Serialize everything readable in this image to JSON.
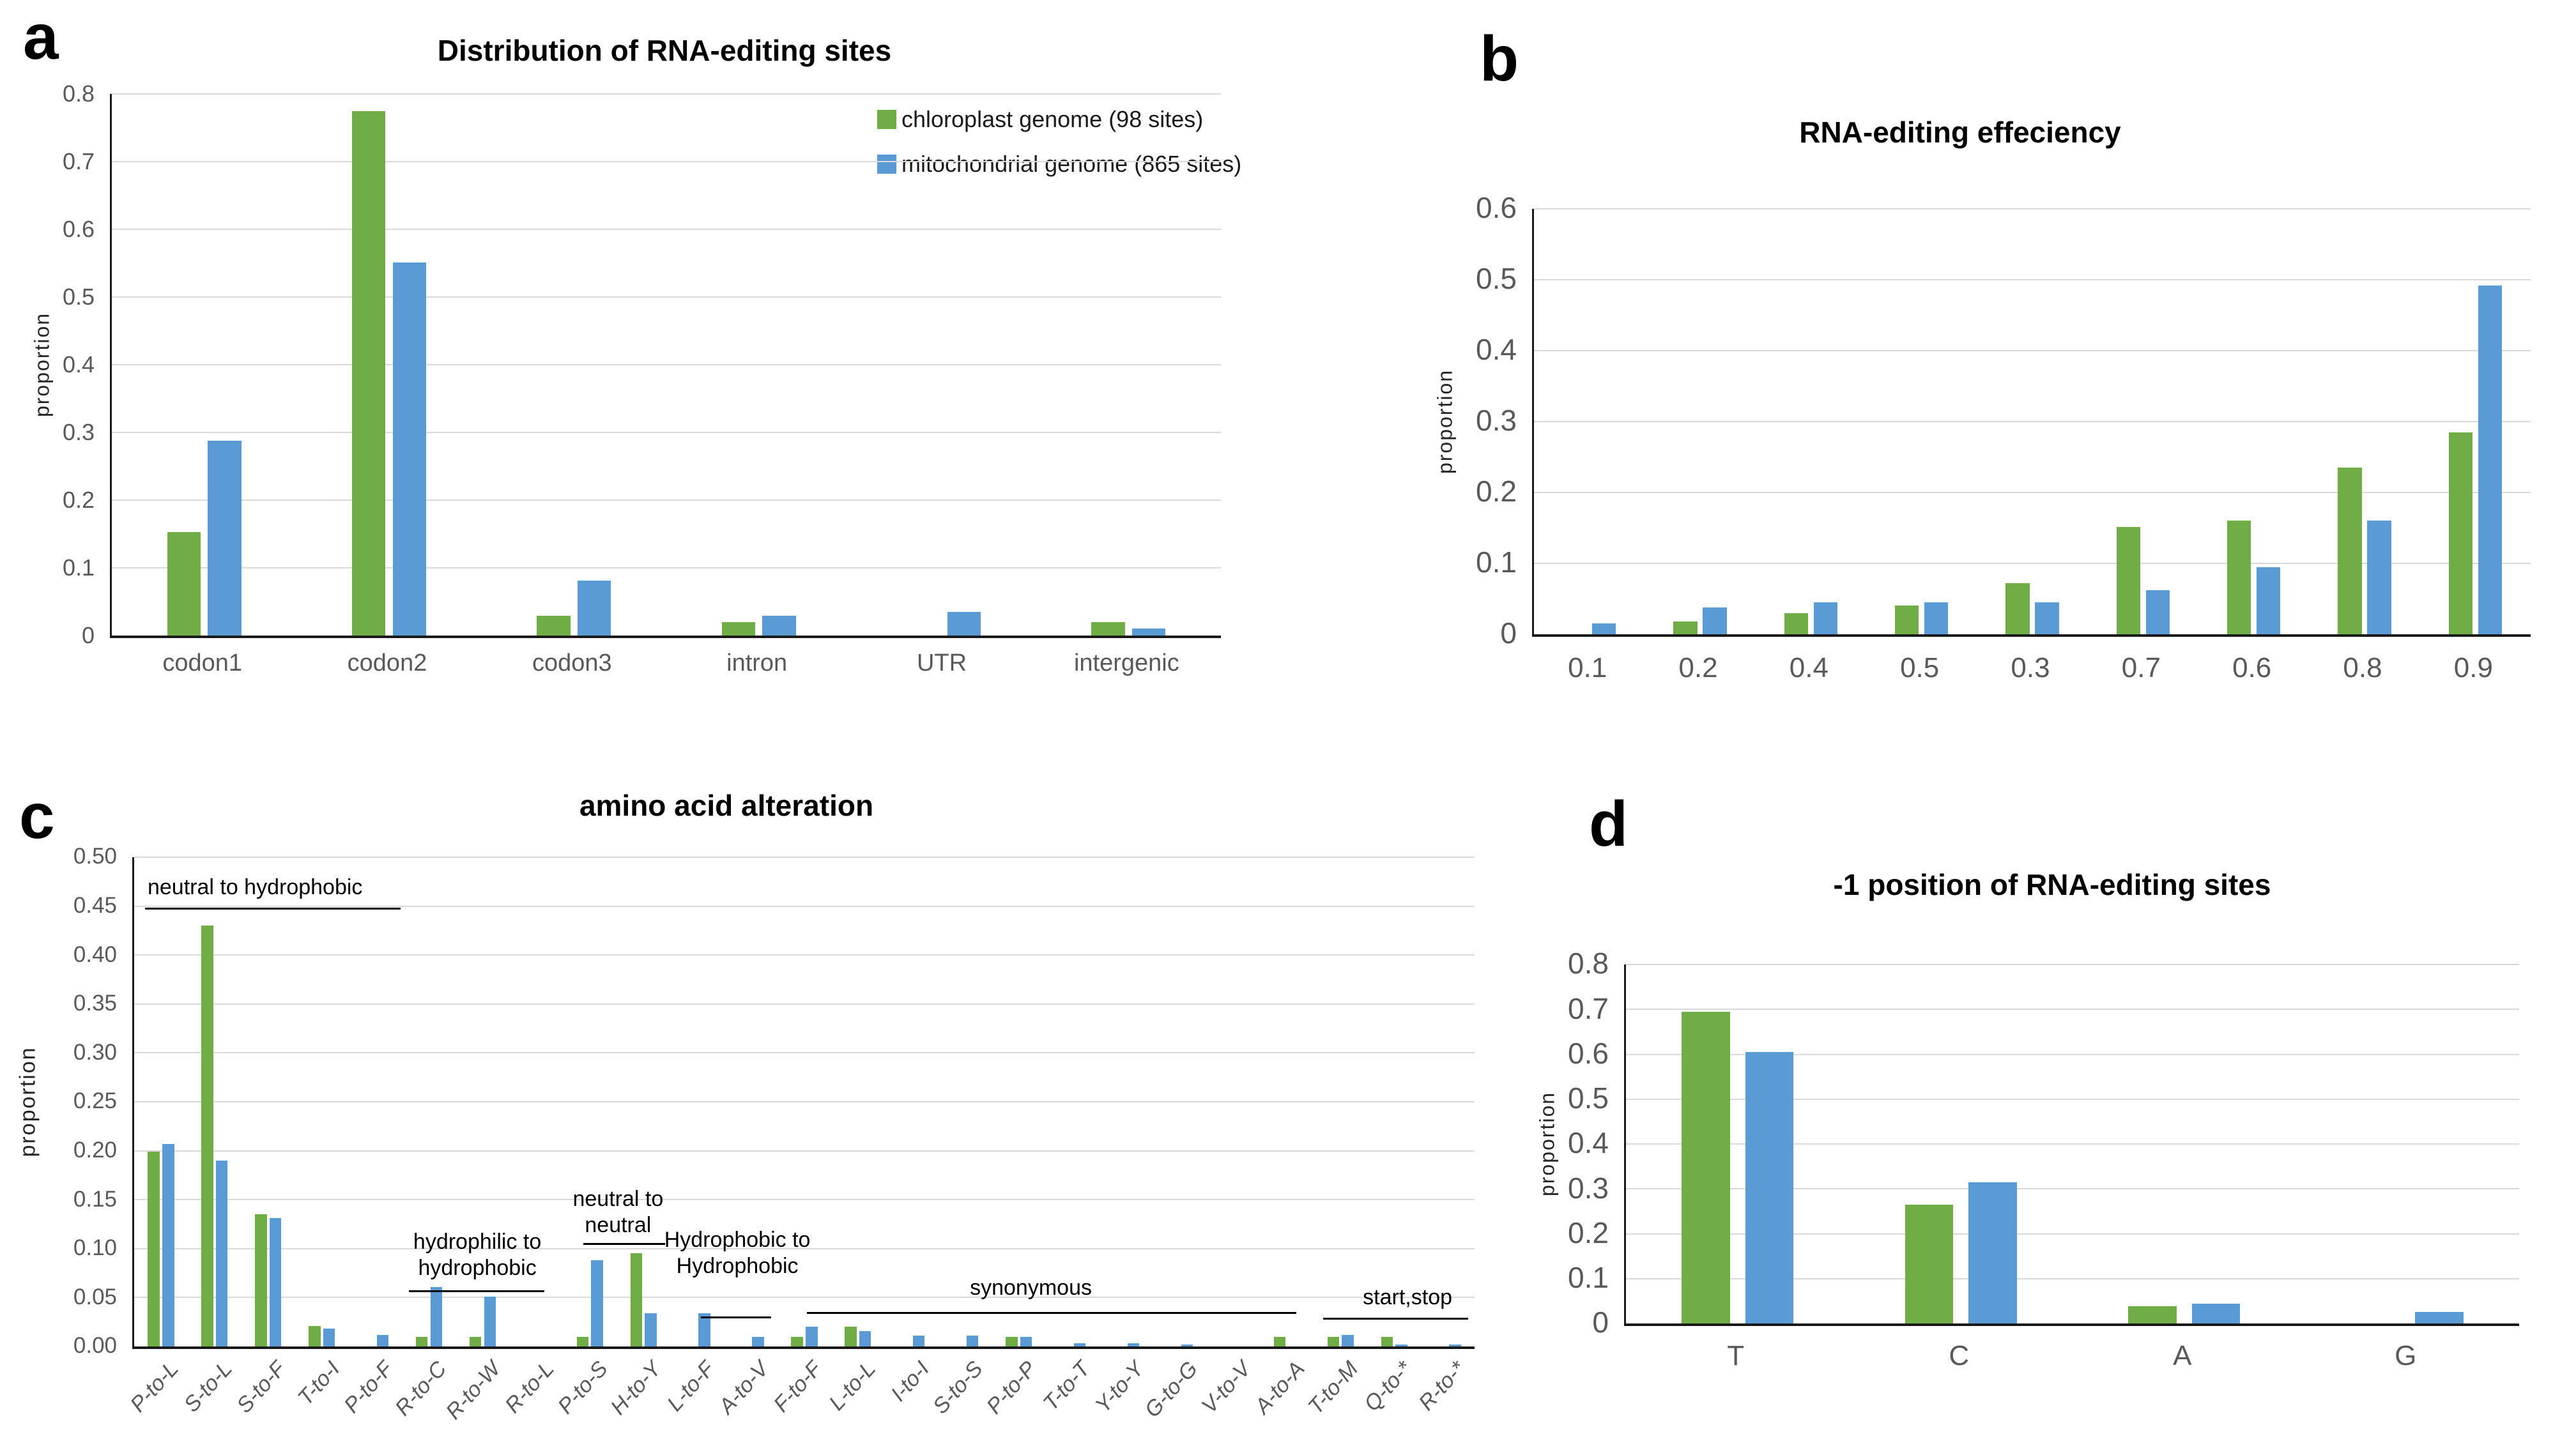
{
  "colors": {
    "chloroplast_green": "#70AD47",
    "mitochondrial_blue": "#5B9BD5",
    "gridline": "#d9d9d9",
    "axis": "#1a1a1a",
    "tick_label": "#595959"
  },
  "legend": {
    "items": [
      {
        "label": "chloroplast genome (98 sites)",
        "color": "#70AD47"
      },
      {
        "label": "mitochondrial genome (865 sites)",
        "color": "#5B9BD5"
      }
    ]
  },
  "panels": {
    "a": {
      "letter": "a",
      "title": "Distribution of RNA-editing sites",
      "ylabel": "proportion"
    },
    "b": {
      "letter": "b",
      "title": "RNA-editing effeciency",
      "ylabel": "proportion"
    },
    "c": {
      "letter": "c",
      "title": "amino acid alteration",
      "ylabel": "proportion"
    },
    "d": {
      "letter": "d",
      "title": "-1 position of RNA-editing sites",
      "ylabel": "proportion"
    }
  },
  "chart_data": [
    {
      "panel": "a",
      "type": "bar",
      "title": "Distribution of RNA-editing sites",
      "ylabel": "proportion",
      "ylim": [
        0,
        0.8
      ],
      "grid": true,
      "legend_position": "top-right",
      "yticks": [
        "0.8",
        "0.7",
        "0.6",
        "0.5",
        "0.4",
        "0.3",
        "0.2",
        "0.1",
        "0"
      ],
      "categories": [
        "codon1",
        "codon2",
        "codon3",
        "intron",
        "UTR",
        "intergenic"
      ],
      "series": [
        {
          "name": "chloroplast genome (98 sites)",
          "color": "#70AD47",
          "values": [
            0.153,
            0.775,
            0.029,
            0.02,
            0,
            0.02
          ]
        },
        {
          "name": "mitochondrial genome (865 sites)",
          "color": "#5B9BD5",
          "values": [
            0.288,
            0.551,
            0.081,
            0.029,
            0.035,
            0.01
          ]
        }
      ]
    },
    {
      "panel": "b",
      "type": "bar",
      "title": "RNA-editing effeciency",
      "ylabel": "proportion",
      "ylim": [
        0,
        0.6
      ],
      "grid": true,
      "yticks": [
        "0.6",
        "0.5",
        "0.4",
        "0.3",
        "0.2",
        "0.1",
        "0"
      ],
      "categories": [
        "0.1",
        "0.2",
        "0.4",
        "0.5",
        "0.3",
        "0.7",
        "0.6",
        "0.8",
        "0.9"
      ],
      "series": [
        {
          "name": "chloroplast genome (98 sites)",
          "color": "#70AD47",
          "values": [
            0,
            0.018,
            0.03,
            0.041,
            0.072,
            0.151,
            0.16,
            0.235,
            0.285
          ]
        },
        {
          "name": "mitochondrial genome (865 sites)",
          "color": "#5B9BD5",
          "values": [
            0.015,
            0.038,
            0.045,
            0.045,
            0.045,
            0.062,
            0.095,
            0.16,
            0.492
          ]
        }
      ]
    },
    {
      "panel": "c",
      "type": "bar",
      "title": "amino acid alteration",
      "ylabel": "proportion",
      "ylim": [
        0,
        0.5
      ],
      "grid": true,
      "yticks": [
        "0.50",
        "0.45",
        "0.40",
        "0.35",
        "0.30",
        "0.25",
        "0.20",
        "0.15",
        "0.10",
        "0.05",
        "0.00"
      ],
      "categories": [
        "P-to-L",
        "S-to-L",
        "S-to-F",
        "T-to-I",
        "P-to-F",
        "R-to-C",
        "R-to-W",
        "R-to-L",
        "P-to-S",
        "H-to-Y",
        "L-to-F",
        "A-to-V",
        "F-to-F",
        "L-to-L",
        "I-to-I",
        "S-to-S",
        "P-to-P",
        "T-to-T",
        "Y-to-Y",
        "G-to-G",
        "V-to-V",
        "A-to-A",
        "T-to-M",
        "Q-to-*",
        "R-to-*"
      ],
      "series": [
        {
          "name": "chloroplast genome (98 sites)",
          "color": "#70AD47",
          "values": [
            0.199,
            0.43,
            0.135,
            0.021,
            0,
            0.01,
            0.01,
            0,
            0.01,
            0.095,
            0,
            0,
            0.01,
            0.02,
            0,
            0,
            0.01,
            0,
            0,
            0,
            0,
            0.01,
            0.01,
            0.01,
            0
          ]
        },
        {
          "name": "mitochondrial genome (865 sites)",
          "color": "#5B9BD5",
          "values": [
            0.207,
            0.19,
            0.131,
            0.018,
            0.012,
            0.061,
            0.051,
            0,
            0.088,
            0.034,
            0.034,
            0.01,
            0.02,
            0.016,
            0.011,
            0.011,
            0.01,
            0.003,
            0.003,
            0.002,
            0,
            0,
            0.012,
            0.002,
            0.002
          ]
        }
      ],
      "annotations": [
        {
          "lines": [
            "neutral to hydrophobic"
          ],
          "align": "left",
          "x_pct": 1.0,
          "text_bottom_val": 0.455,
          "line": {
            "from_pct": 0.8,
            "to_pct": 19.9,
            "val": 0.4465
          }
        },
        {
          "lines": [
            "hydrophilic to",
            "hydrophobic"
          ],
          "x_pct": 25.6,
          "text_bottom_val": 0.066,
          "line": {
            "from_pct": 20.5,
            "to_pct": 30.6,
            "val": 0.0555
          }
        },
        {
          "lines": [
            "neutral to",
            "neutral"
          ],
          "x_pct": 36.1,
          "text_bottom_val": 0.11,
          "line": {
            "from_pct": 33.5,
            "to_pct": 39.6,
            "val": 0.1035
          }
        },
        {
          "lines": [
            "Hydrophobic to",
            "Hydrophobic"
          ],
          "x_pct": 45.0,
          "text_bottom_val": 0.068,
          "line": {
            "from_pct": 42.3,
            "to_pct": 47.5,
            "val": 0.029
          }
        },
        {
          "lines": [
            "synonymous"
          ],
          "x_pct": 66.9,
          "text_bottom_val": 0.046,
          "line": {
            "from_pct": 50.2,
            "to_pct": 86.7,
            "val": 0.0335
          }
        },
        {
          "lines": [
            "start,stop"
          ],
          "x_pct": 95.0,
          "text_bottom_val": 0.036,
          "line": {
            "from_pct": 88.7,
            "to_pct": 99.5,
            "val": 0.0275
          }
        }
      ]
    },
    {
      "panel": "d",
      "type": "bar",
      "title": "-1 position of RNA-editing sites",
      "ylabel": "proportion",
      "ylim": [
        0,
        0.8
      ],
      "grid": true,
      "yticks": [
        "0.8",
        "0.7",
        "0.6",
        "0.5",
        "0.4",
        "0.3",
        "0.2",
        "0.1",
        "0"
      ],
      "categories": [
        "T",
        "C",
        "A",
        "G"
      ],
      "series": [
        {
          "name": "chloroplast genome (98 sites)",
          "color": "#70AD47",
          "values": [
            0.695,
            0.265,
            0.039,
            0
          ]
        },
        {
          "name": "mitochondrial genome (865 sites)",
          "color": "#5B9BD5",
          "values": [
            0.605,
            0.315,
            0.044,
            0.025
          ]
        }
      ]
    }
  ]
}
